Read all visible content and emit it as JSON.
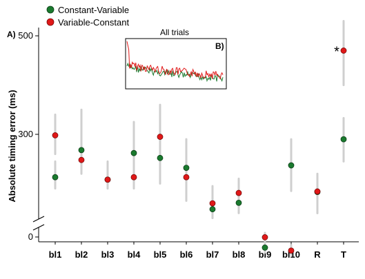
{
  "chart_data": {
    "type": "scatter",
    "panel_a_label": "A)",
    "ylabel": "Absolute timing error (ms)",
    "yticks": [
      0,
      300,
      500
    ],
    "ylim": [
      0,
      520
    ],
    "y_axis_break": true,
    "categories": [
      "bl1",
      "bl2",
      "bl3",
      "bl4",
      "bl5",
      "bl6",
      "bl7",
      "bl8",
      "bl9",
      "bl10",
      "R",
      "T"
    ],
    "legend": {
      "position": "top-left"
    },
    "series": [
      {
        "name": "Constant-Variable",
        "color": "#1a7a2e",
        "values": [
          213,
          268,
          208,
          262,
          252,
          232,
          148,
          161,
          70,
          237,
          183,
          290
        ],
        "error_low": [
          190,
          235,
          190,
          190,
          200,
          200,
          130,
          140,
          60,
          185,
          140,
          245
        ],
        "error_high": [
          245,
          340,
          238,
          325,
          350,
          290,
          182,
          195,
          82,
          290,
          213,
          333
        ]
      },
      {
        "name": "Variable-Constant",
        "color": "#e01818",
        "values": [
          298,
          248,
          208,
          213,
          295,
          213,
          160,
          181,
          91,
          64,
          184,
          470
        ],
        "error_low": [
          260,
          220,
          190,
          195,
          240,
          165,
          130,
          160,
          70,
          55,
          140,
          400
        ],
        "error_high": [
          340,
          350,
          245,
          325,
          360,
          290,
          195,
          210,
          100,
          75,
          220,
          530
        ]
      }
    ],
    "annotations": [
      {
        "text": "*",
        "category": "T"
      }
    ],
    "inset": {
      "label": "B)",
      "title": "All trials",
      "type": "line"
    }
  }
}
